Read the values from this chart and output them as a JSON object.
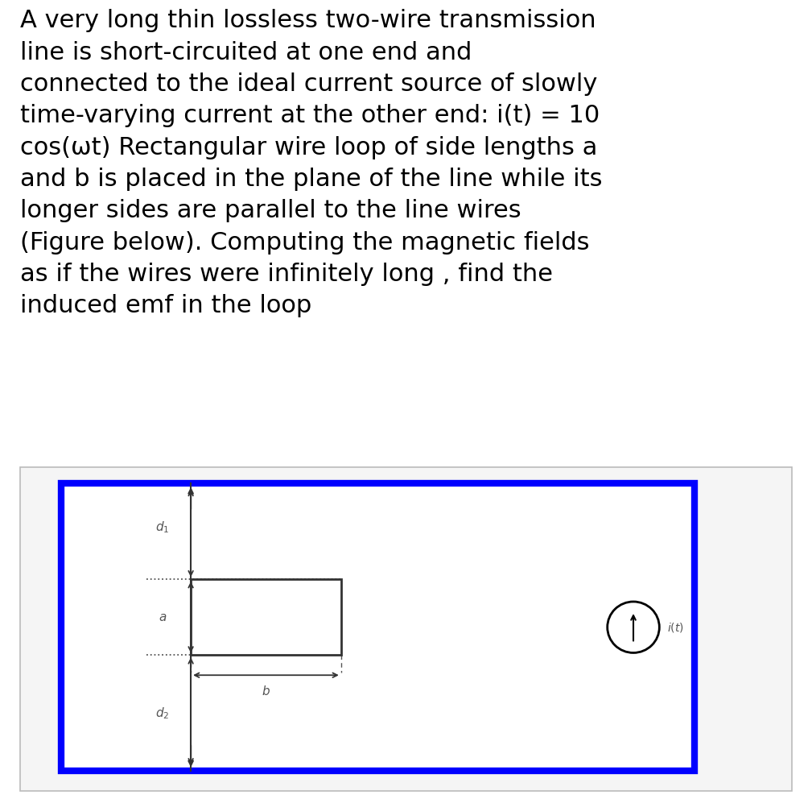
{
  "title_text": "A very long thin lossless two-wire transmission\nline is short-circuited at one end and\nconnected to the ideal current source of slowly\ntime-varying current at the other end: i(t) = 10\ncos(ωt) Rectangular wire loop of side lengths a\nand b is placed in the plane of the line while its\nlonger sides are parallel to the line wires\n(Figure below). Computing the magnetic fields\nas if the wires were infinitely long , find the\ninduced emf in the loop",
  "title_fontsize": 22,
  "title_color": "#000000",
  "bg_color": "#ffffff",
  "diagram_bg": "#f0f0f0",
  "diagram_border_color": "#0000ff",
  "diagram_border_lw": 6,
  "loop_color": "#000000",
  "loop_lw": 2,
  "arrow_color": "#000000",
  "dotted_color": "#000000",
  "source_circle_color": "#000000",
  "text_color": "#555555",
  "label_fontsize": 11,
  "fig_width": 10.09,
  "fig_height": 9.92,
  "dpi": 100
}
